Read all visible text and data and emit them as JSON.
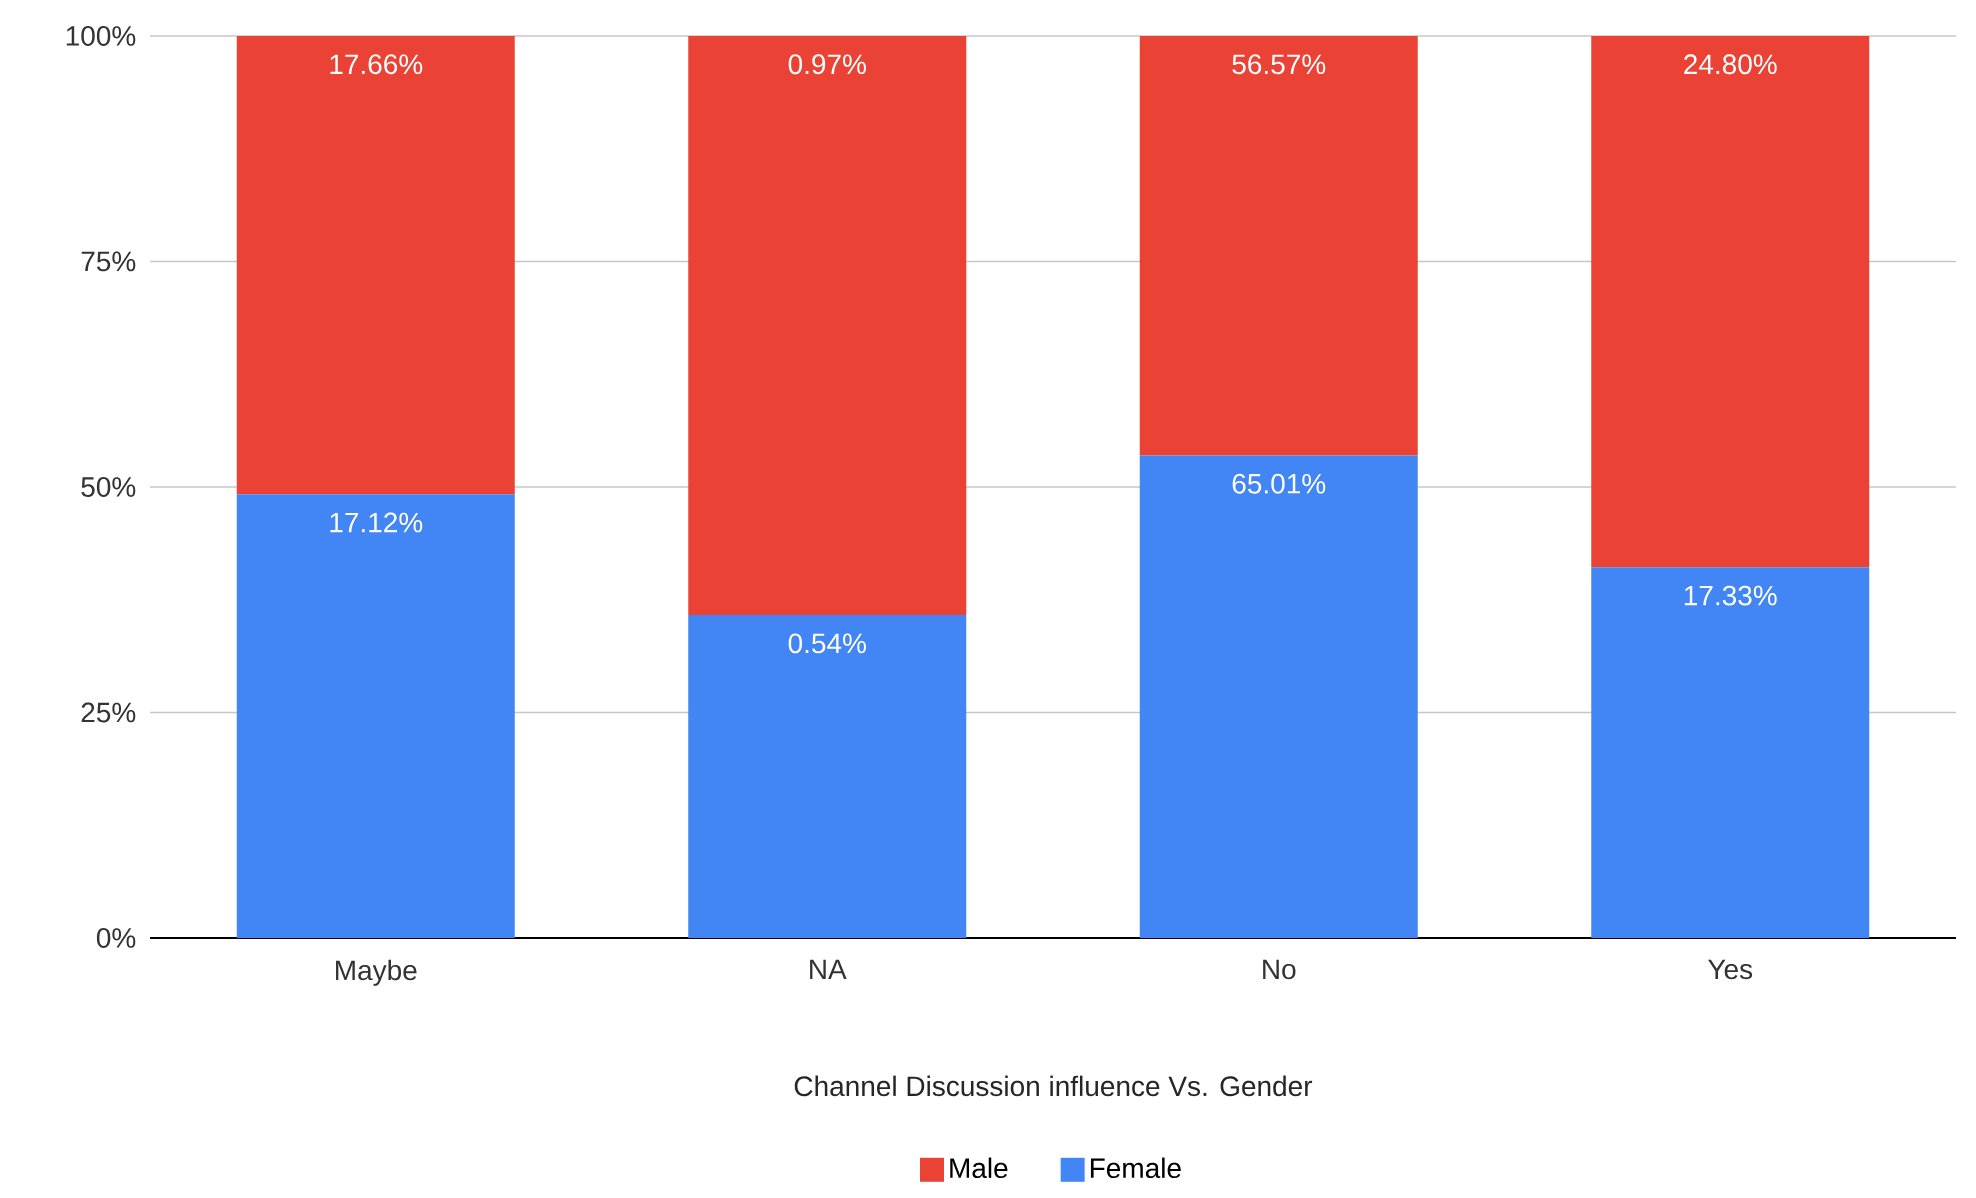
{
  "chart_data": {
    "type": "bar",
    "stacked": true,
    "xlabel": "Channel Discussion influence Vs. Gender",
    "categories": [
      "Maybe",
      "NA",
      "No",
      "Yes"
    ],
    "series": [
      {
        "name": "Female",
        "color": "#4285f4",
        "values": [
          49.2,
          35.8,
          53.5,
          41.1
        ]
      },
      {
        "name": "Male",
        "color": "#ea4335",
        "values": [
          50.8,
          64.2,
          46.5,
          58.9
        ]
      }
    ],
    "annotations": [
      {
        "text": "17.12%",
        "x": "Maybe",
        "y": 49.2
      },
      {
        "text": "0.54%",
        "x": "NA",
        "y": 35.8
      },
      {
        "text": "65.01%",
        "x": "No",
        "y": 53.5
      },
      {
        "text": "17.33%",
        "x": "Yes",
        "y": 41.1
      },
      {
        "text": "17.66%",
        "x": "Maybe",
        "y": 100
      },
      {
        "text": "0.97%",
        "x": "NA",
        "y": 100
      },
      {
        "text": "56.57%",
        "x": "No",
        "y": 100
      },
      {
        "text": "24.80%",
        "x": "Yes",
        "y": 100
      }
    ],
    "ylim": [
      0,
      100
    ],
    "yticks": [
      {
        "value": 0,
        "label": "0%"
      },
      {
        "value": 25,
        "label": "25%"
      },
      {
        "value": 50,
        "label": "50%"
      },
      {
        "value": 75,
        "label": "75%"
      },
      {
        "value": 100,
        "label": "100%"
      }
    ],
    "grid": "y",
    "legend": "bottom"
  }
}
